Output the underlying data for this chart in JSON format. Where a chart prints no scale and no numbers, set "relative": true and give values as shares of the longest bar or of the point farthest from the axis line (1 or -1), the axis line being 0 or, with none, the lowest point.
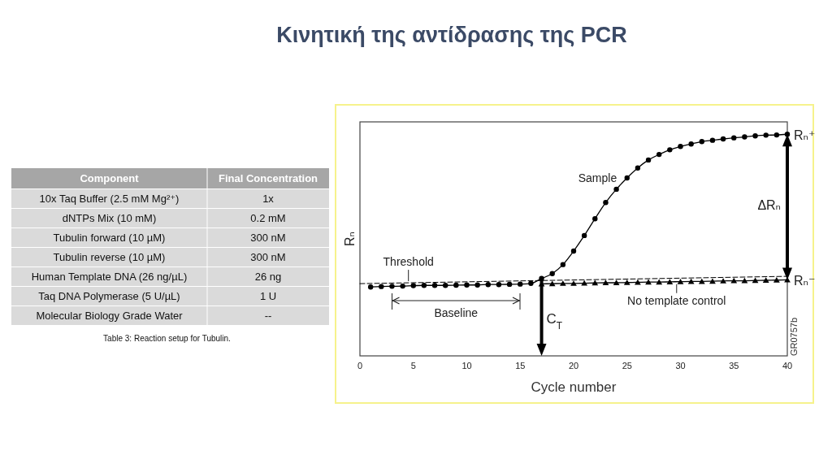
{
  "chart_data": [
    {
      "type": "line",
      "title": "Κινητική της αντίδρασης της PCR",
      "xlabel": "Cycle number",
      "ylabel": "Rₙ",
      "relative": true,
      "x": [
        1,
        2,
        3,
        4,
        5,
        6,
        7,
        8,
        9,
        10,
        11,
        12,
        13,
        14,
        15,
        16,
        17,
        18,
        19,
        20,
        21,
        22,
        23,
        24,
        25,
        26,
        27,
        28,
        29,
        30,
        31,
        32,
        33,
        34,
        35,
        36,
        37,
        38,
        39,
        40
      ],
      "xlim": [
        0,
        40
      ],
      "xticks": [
        0,
        5,
        10,
        15,
        20,
        25,
        30,
        35,
        40
      ],
      "series": [
        {
          "name": "Sample",
          "color": "#000000",
          "marker": "circle",
          "values": [
            0.311,
            0.313,
            0.314,
            0.315,
            0.317,
            0.318,
            0.318,
            0.318,
            0.319,
            0.32,
            0.32,
            0.322,
            0.322,
            0.323,
            0.324,
            0.327,
            0.349,
            0.371,
            0.412,
            0.473,
            0.543,
            0.619,
            0.692,
            0.752,
            0.803,
            0.848,
            0.884,
            0.909,
            0.93,
            0.945,
            0.956,
            0.967,
            0.973,
            0.979,
            0.984,
            0.988,
            0.993,
            0.996,
            0.997,
            1
          ]
        },
        {
          "name": "No template control",
          "color": "#000000",
          "marker": "triangle",
          "values": [
            null,
            null,
            null,
            null,
            null,
            null,
            null,
            null,
            null,
            null,
            null,
            null,
            null,
            null,
            null,
            null,
            0.325,
            0.326,
            0.327,
            0.327,
            0.328,
            0.329,
            0.33,
            0.33,
            0.331,
            0.332,
            0.333,
            0.333,
            0.334,
            0.335,
            0.336,
            0.336,
            0.337,
            0.338,
            0.339,
            0.339,
            0.34,
            0.341,
            0.342,
            0.343
          ]
        },
        {
          "name": "Threshold",
          "color": "#000000",
          "marker": "none",
          "line_style": "dashed",
          "x": [
            0,
            40
          ],
          "values": [
            0.326,
            0.359
          ]
        }
      ],
      "annotations": [
        "C$_{T}$",
        "Rₙ⁺",
        "Rₙ⁻",
        "ΔRₙ",
        "Baseline",
        "GR0757b"
      ]
    },
    {
      "type": "other",
      "annotations": [
        "Component",
        "Final Concentration",
        "10x Taq Buffer (2.5 mM Mg²⁺)",
        "1x",
        "dNTPs Mix (10 mM)",
        "0.2 mM",
        "Tubulin forward (10 µM)",
        "300 nM",
        "Tubulin reverse (10 µM)",
        "300 nM",
        "Human Template DNA (26 ng/µL)",
        "26 ng",
        "Taq DNA Polymerase (5 U/µL)",
        "1 U",
        "Molecular Biology Grade Water",
        "--",
        "Table 3: Reaction setup for Tubulin."
      ]
    }
  ]
}
